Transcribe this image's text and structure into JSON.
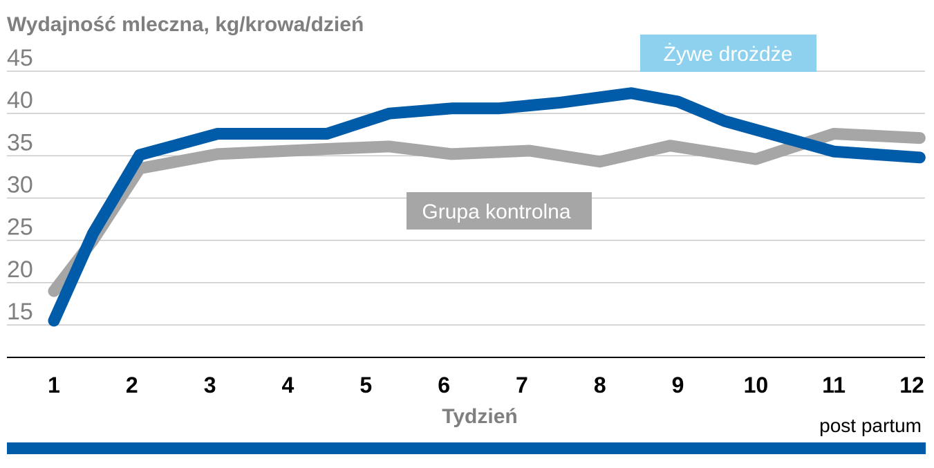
{
  "chart_data": {
    "type": "line",
    "title": "",
    "ylabel": "Wydajność mleczna, kg/krowa/dzień",
    "xlabel": "Tydzień",
    "x_note": "post partum",
    "x_ticks": [
      "1",
      "2",
      "3",
      "4",
      "5",
      "6",
      "7",
      "8",
      "9",
      "10",
      "11",
      "12"
    ],
    "y_ticks": [
      "15",
      "20",
      "25",
      "30",
      "35",
      "40",
      "45"
    ],
    "ylim": [
      15,
      45
    ],
    "grid": true,
    "series": [
      {
        "name": "Grupa kontrolna",
        "color": "#a6a6a6",
        "points": [
          {
            "x": 1,
            "y": 19
          },
          {
            "x": 1.5,
            "y": 25
          },
          {
            "x": 2.1,
            "y": 33.5
          },
          {
            "x": 3.1,
            "y": 35.2
          },
          {
            "x": 4.5,
            "y": 35.8
          },
          {
            "x": 5.3,
            "y": 36.1
          },
          {
            "x": 6.1,
            "y": 35.2
          },
          {
            "x": 7.1,
            "y": 35.6
          },
          {
            "x": 8,
            "y": 34.3
          },
          {
            "x": 8.9,
            "y": 36.2
          },
          {
            "x": 10,
            "y": 34.6
          },
          {
            "x": 11,
            "y": 37.6
          },
          {
            "x": 12.1,
            "y": 37.1
          }
        ]
      },
      {
        "name": "Żywe drożdże",
        "color": "#005ba8",
        "points": [
          {
            "x": 1,
            "y": 15.5
          },
          {
            "x": 1.5,
            "y": 25.8
          },
          {
            "x": 2.1,
            "y": 35.1
          },
          {
            "x": 3.1,
            "y": 37.6
          },
          {
            "x": 4.5,
            "y": 37.6
          },
          {
            "x": 5.3,
            "y": 40
          },
          {
            "x": 6.1,
            "y": 40.6
          },
          {
            "x": 6.7,
            "y": 40.6
          },
          {
            "x": 7.5,
            "y": 41.3
          },
          {
            "x": 8.4,
            "y": 42.4
          },
          {
            "x": 9,
            "y": 41.4
          },
          {
            "x": 9.6,
            "y": 39.1
          },
          {
            "x": 10.3,
            "y": 37.3
          },
          {
            "x": 11,
            "y": 35.5
          },
          {
            "x": 12.1,
            "y": 34.8
          }
        ]
      }
    ],
    "legend": [
      {
        "label": "Żywe drożdże",
        "bg": "#8ed1ef"
      },
      {
        "label": "Grupa kontrolna",
        "bg": "#a6a6a6"
      }
    ],
    "colors": {
      "grid": "#c8c8c8",
      "axis": "#000000",
      "bottom_bar": "#005ba8"
    }
  }
}
